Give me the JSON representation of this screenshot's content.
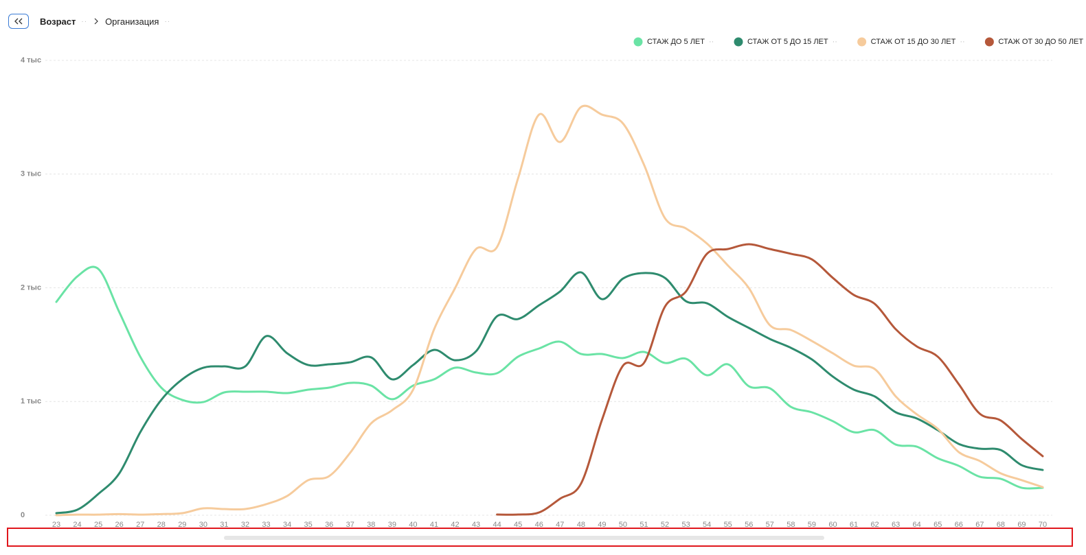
{
  "breadcrumb": [
    "Возраст",
    "Организация"
  ],
  "chart_data": {
    "type": "line",
    "categories": [
      23,
      24,
      25,
      26,
      27,
      28,
      29,
      30,
      31,
      32,
      33,
      34,
      35,
      36,
      37,
      38,
      39,
      40,
      41,
      42,
      43,
      44,
      45,
      46,
      47,
      48,
      49,
      50,
      51,
      52,
      53,
      54,
      55,
      56,
      57,
      58,
      59,
      60,
      61,
      62,
      63,
      64,
      65,
      66,
      67,
      68,
      69,
      70
    ],
    "ylim": [
      0,
      4000
    ],
    "yticks": [
      0,
      {
        "value": 1000,
        "label": "1 тыс"
      },
      {
        "value": 2000,
        "label": "2 тыс"
      },
      {
        "value": 3000,
        "label": "3 тыс"
      },
      {
        "value": 4000,
        "label": "4 тыс"
      }
    ],
    "grid": true,
    "legend": "top-right",
    "series": [
      {
        "name": "СТАЖ ДО 5 ЛЕТ",
        "color": "#6ae3a5",
        "values": [
          1876,
          2100,
          2166,
          1786,
          1394,
          1122,
          1014,
          995,
          1080,
          1086,
          1086,
          1074,
          1104,
          1122,
          1164,
          1140,
          1020,
          1140,
          1195,
          1297,
          1255,
          1249,
          1394,
          1466,
          1526,
          1418,
          1418,
          1382,
          1436,
          1339,
          1376,
          1231,
          1327,
          1134,
          1116,
          953,
          905,
          827,
          730,
          748,
          621,
          603,
          501,
          434,
          338,
          320,
          241,
          241
        ]
      },
      {
        "name": "СТАЖ ОТ 5 ДО 15 ЛЕТ",
        "color": "#2e8b6e",
        "values": [
          18,
          48,
          187,
          368,
          730,
          1014,
          1195,
          1297,
          1309,
          1309,
          1575,
          1424,
          1321,
          1327,
          1345,
          1388,
          1195,
          1321,
          1454,
          1363,
          1442,
          1750,
          1725,
          1846,
          1967,
          2136,
          1900,
          2081,
          2130,
          2087,
          1882,
          1864,
          1744,
          1647,
          1550,
          1472,
          1370,
          1219,
          1104,
          1044,
          905,
          851,
          748,
          627,
          585,
          573,
          440,
          398
        ]
      },
      {
        "name": "СТАЖ ОТ 15 ДО 30 ЛЕТ",
        "color": "#f6cb9c",
        "values": [
          0,
          5,
          5,
          10,
          5,
          10,
          18,
          60,
          54,
          54,
          97,
          169,
          308,
          344,
          549,
          808,
          923,
          1104,
          1635,
          1997,
          2341,
          2359,
          2962,
          3523,
          3282,
          3590,
          3523,
          3445,
          3083,
          2612,
          2522,
          2389,
          2196,
          1997,
          1671,
          1629,
          1532,
          1424,
          1315,
          1285,
          1044,
          887,
          760,
          555,
          477,
          368,
          308,
          247
        ]
      },
      {
        "name": "СТАЖ ОТ 30 ДО 50 ЛЕТ",
        "color": "#b5583a",
        "values": [
          null,
          null,
          null,
          null,
          null,
          null,
          null,
          null,
          null,
          null,
          null,
          null,
          null,
          null,
          null,
          null,
          null,
          null,
          null,
          null,
          null,
          6,
          6,
          24,
          145,
          278,
          839,
          1315,
          1339,
          1834,
          1967,
          2299,
          2341,
          2383,
          2341,
          2299,
          2250,
          2087,
          1937,
          1858,
          1635,
          1484,
          1394,
          1152,
          893,
          833,
          670,
          519
        ]
      }
    ]
  }
}
